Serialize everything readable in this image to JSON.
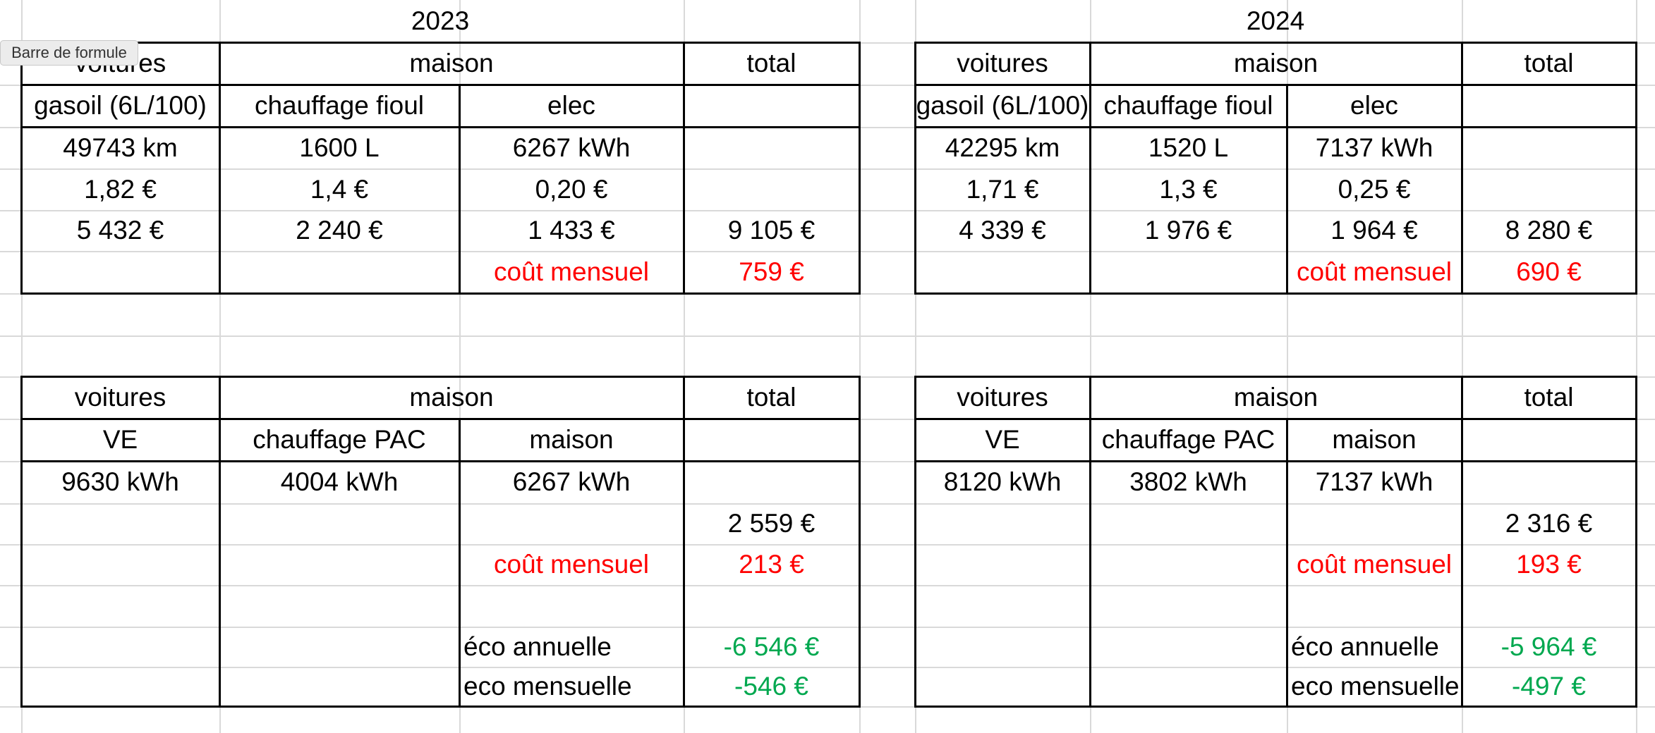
{
  "tooltip": "Barre de formule",
  "columns": [
    {
      "title": "2023",
      "tables": [
        [
          [
            "voitures",
            "maison",
            "total"
          ],
          [
            "gasoil (6L/100)",
            "chauffage fioul",
            "elec",
            null
          ],
          [
            "49743 km",
            "1600 L",
            "6267 kWh",
            null
          ],
          [
            "1,82 €",
            "1,4 €",
            "0,20 €",
            null
          ],
          [
            "5 432 €",
            "2 240 €",
            "1 433 €",
            "9 105 €"
          ],
          [
            null,
            null,
            "coût mensuel",
            "759 €"
          ]
        ],
        [
          [
            "voitures",
            "maison",
            "total"
          ],
          [
            "VE",
            "chauffage PAC",
            "maison",
            null
          ],
          [
            "9630 kWh",
            "4004 kWh",
            "6267 kWh",
            null
          ],
          [
            null,
            null,
            null,
            "2 559 €"
          ],
          [
            null,
            null,
            "coût mensuel",
            "213 €"
          ],
          [
            null,
            null,
            null,
            null
          ],
          [
            null,
            null,
            "éco annuelle",
            "-6 546 €"
          ],
          [
            null,
            null,
            "eco mensuelle",
            "-546 €"
          ]
        ]
      ]
    },
    {
      "title": "2024",
      "tables": [
        [
          [
            "voitures",
            "maison",
            "total"
          ],
          [
            "gasoil (6L/100)",
            "chauffage fioul",
            "elec",
            null
          ],
          [
            "42295 km",
            "1520 L",
            "7137 kWh",
            null
          ],
          [
            "1,71 €",
            "1,3 €",
            "0,25 €",
            null
          ],
          [
            "4 339 €",
            "1 976 €",
            "1 964 €",
            "8 280 €"
          ],
          [
            null,
            null,
            "coût mensuel",
            "690 €"
          ]
        ],
        [
          [
            "voitures",
            "maison",
            "total"
          ],
          [
            "VE",
            "chauffage PAC",
            "maison",
            null
          ],
          [
            "8120 kWh",
            "3802 kWh",
            "7137 kWh",
            null
          ],
          [
            null,
            null,
            null,
            "2 316 €"
          ],
          [
            null,
            null,
            "coût mensuel",
            "193 €"
          ],
          [
            null,
            null,
            null,
            null
          ],
          [
            null,
            null,
            "éco annuelle",
            "-5 964 €"
          ],
          [
            null,
            null,
            "eco mensuelle",
            "-497 €"
          ]
        ]
      ]
    }
  ]
}
